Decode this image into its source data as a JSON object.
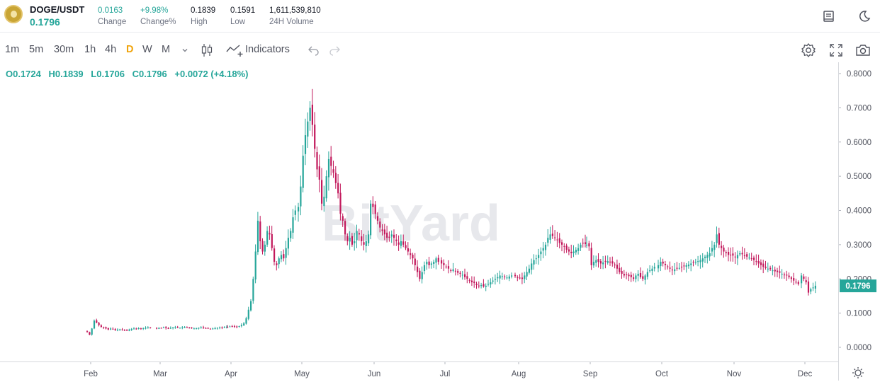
{
  "header": {
    "pair": "DOGE/USDT",
    "last_price": "0.1796",
    "stats": [
      {
        "value": "0.0163",
        "label": "Change",
        "color": "#26a69a"
      },
      {
        "value": "+9.98%",
        "label": "Change%",
        "color": "#26a69a"
      },
      {
        "value": "0.1839",
        "label": "High",
        "color": "#131722"
      },
      {
        "value": "0.1591",
        "label": "Low",
        "color": "#131722"
      },
      {
        "value": "1,611,539,810",
        "label": "24H Volume",
        "color": "#131722"
      }
    ],
    "icons": [
      "book-icon",
      "moon-icon"
    ]
  },
  "toolbar": {
    "timeframes": [
      "1m",
      "5m",
      "30m",
      "1h",
      "4h",
      "D",
      "W",
      "M"
    ],
    "active_timeframe": "D",
    "indicators_label": "Indicators",
    "icons": [
      "chevron-down-icon",
      "candle-type-icon",
      "indicators-icon",
      "undo-icon",
      "redo-icon",
      "settings-icon",
      "fullscreen-icon",
      "camera-icon"
    ]
  },
  "ohlc": {
    "open": "O0.1724",
    "high": "H0.1839",
    "low": "L0.1706",
    "close": "C0.1796",
    "change": "+0.0072 (+4.18%)"
  },
  "chart_data": {
    "type": "candlestick",
    "title": "",
    "watermark": "BitYard",
    "ylim": [
      0.0,
      0.8
    ],
    "y_ticks": [
      "0.8000",
      "0.7000",
      "0.6000",
      "0.5000",
      "0.4000",
      "0.3000",
      "0.2000",
      "0.1000",
      "0.0000"
    ],
    "x_ticks": [
      "Feb",
      "Mar",
      "Apr",
      "May",
      "Jun",
      "Jul",
      "Aug",
      "Sep",
      "Oct",
      "Nov",
      "Dec"
    ],
    "last_price_label": "0.1796",
    "up_color": "#26a69a",
    "down_color": "#c2185b",
    "grid": false,
    "close_path_by_month": [
      {
        "month": "Feb",
        "points": [
          0.045,
          0.037,
          0.055,
          0.078,
          0.072,
          0.065,
          0.06,
          0.058,
          0.055,
          0.052,
          0.055,
          0.054,
          0.05,
          0.052,
          0.053,
          0.051,
          0.05,
          0.049,
          0.052,
          0.054,
          0.055,
          0.054,
          0.056,
          0.055,
          0.056,
          0.057,
          0.058,
          0.057
        ]
      },
      {
        "month": "Mar",
        "points": [
          0.055,
          0.056,
          0.057,
          0.058,
          0.056,
          0.055,
          0.057,
          0.058,
          0.059,
          0.058,
          0.057,
          0.058,
          0.059,
          0.058,
          0.057,
          0.056,
          0.055,
          0.056,
          0.057,
          0.058,
          0.057,
          0.056,
          0.055,
          0.054,
          0.055,
          0.056,
          0.057,
          0.058,
          0.058,
          0.059,
          0.06
        ]
      },
      {
        "month": "Apr",
        "points": [
          0.06,
          0.061,
          0.062,
          0.061,
          0.06,
          0.062,
          0.065,
          0.07,
          0.085,
          0.11,
          0.135,
          0.2,
          0.28,
          0.37,
          0.31,
          0.28,
          0.3,
          0.34,
          0.33,
          0.29,
          0.25,
          0.24,
          0.26,
          0.27,
          0.26,
          0.29,
          0.32,
          0.34,
          0.38,
          0.4
        ]
      },
      {
        "month": "May",
        "points": [
          0.41,
          0.47,
          0.56,
          0.62,
          0.66,
          0.7,
          0.65,
          0.58,
          0.52,
          0.49,
          0.42,
          0.44,
          0.5,
          0.55,
          0.53,
          0.51,
          0.48,
          0.45,
          0.39,
          0.37,
          0.33,
          0.31,
          0.32,
          0.3,
          0.31,
          0.34,
          0.33,
          0.31,
          0.3,
          0.31,
          0.33
        ]
      },
      {
        "month": "Jun",
        "points": [
          0.42,
          0.41,
          0.39,
          0.37,
          0.35,
          0.34,
          0.33,
          0.32,
          0.32,
          0.33,
          0.32,
          0.31,
          0.3,
          0.31,
          0.3,
          0.29,
          0.28,
          0.27,
          0.26,
          0.24,
          0.22,
          0.2,
          0.22,
          0.24,
          0.25,
          0.24,
          0.245,
          0.25,
          0.26,
          0.25
        ]
      },
      {
        "month": "Jul",
        "points": [
          0.245,
          0.24,
          0.235,
          0.23,
          0.225,
          0.228,
          0.222,
          0.218,
          0.215,
          0.212,
          0.205,
          0.2,
          0.195,
          0.19,
          0.188,
          0.182,
          0.18,
          0.182,
          0.178,
          0.18,
          0.185,
          0.19,
          0.195,
          0.2,
          0.205,
          0.21,
          0.208,
          0.206,
          0.204,
          0.207,
          0.21
        ]
      },
      {
        "month": "Aug",
        "points": [
          0.208,
          0.205,
          0.203,
          0.2,
          0.21,
          0.22,
          0.23,
          0.245,
          0.255,
          0.26,
          0.27,
          0.28,
          0.29,
          0.3,
          0.32,
          0.33,
          0.325,
          0.32,
          0.315,
          0.305,
          0.3,
          0.295,
          0.285,
          0.28,
          0.275,
          0.28,
          0.285,
          0.29,
          0.3,
          0.305,
          0.302
        ]
      },
      {
        "month": "Sep",
        "points": [
          0.3,
          0.295,
          0.24,
          0.25,
          0.255,
          0.25,
          0.245,
          0.248,
          0.25,
          0.252,
          0.248,
          0.245,
          0.24,
          0.23,
          0.22,
          0.215,
          0.21,
          0.212,
          0.208,
          0.205,
          0.2,
          0.21,
          0.215,
          0.205,
          0.2,
          0.21,
          0.22,
          0.225,
          0.23,
          0.235
        ]
      },
      {
        "month": "Oct",
        "points": [
          0.24,
          0.25,
          0.245,
          0.24,
          0.235,
          0.23,
          0.225,
          0.228,
          0.23,
          0.232,
          0.235,
          0.238,
          0.24,
          0.242,
          0.245,
          0.248,
          0.25,
          0.252,
          0.255,
          0.26,
          0.265,
          0.27,
          0.275,
          0.29,
          0.3,
          0.33,
          0.3,
          0.29,
          0.28,
          0.275,
          0.27
        ]
      },
      {
        "month": "Nov",
        "points": [
          0.27,
          0.268,
          0.265,
          0.27,
          0.275,
          0.272,
          0.268,
          0.265,
          0.262,
          0.258,
          0.255,
          0.25,
          0.245,
          0.24,
          0.235,
          0.232,
          0.23,
          0.228,
          0.225,
          0.222,
          0.22,
          0.218,
          0.215,
          0.212,
          0.21,
          0.205,
          0.2,
          0.195,
          0.19,
          0.185
        ]
      },
      {
        "month": "Dec",
        "points": [
          0.21,
          0.2,
          0.19,
          0.16,
          0.17,
          0.175,
          0.18
        ]
      }
    ]
  }
}
